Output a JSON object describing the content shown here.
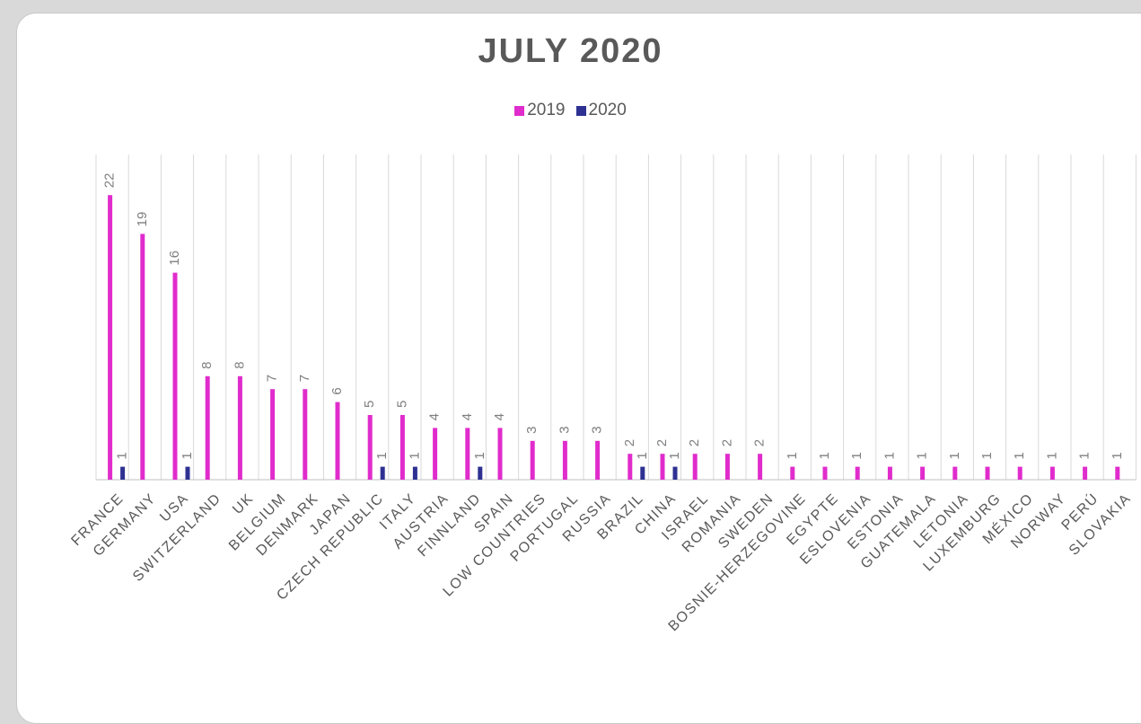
{
  "chart_data": {
    "type": "bar",
    "title": "JULY 2020",
    "xlabel": "",
    "ylabel": "",
    "ylim": [
      0,
      23
    ],
    "grid": "vertical",
    "legend_position": "top",
    "categories": [
      "FRANCE",
      "GERMANY",
      "USA",
      "SWITZERLAND",
      "UK",
      "BELGIUM",
      "DENMARK",
      "JAPAN",
      "CZECH REPUBLIC",
      "ITALY",
      "AUSTRIA",
      "FINNLAND",
      "SPAIN",
      "LOW COUNTRIES",
      "PORTUGAL",
      "RUSSIA",
      "BRAZIL",
      "CHINA",
      "ISRAEL",
      "ROMANIA",
      "SWEDEN",
      "BOSNIE-HERZEGOVINE",
      "EGYPTE",
      "ESLOVENIA",
      "ESTONIA",
      "GUATEMALA",
      "LETONIA",
      "LUXEMBURG",
      "MÉXICO",
      "NORWAY",
      "PERÚ",
      "SLOVAKIA"
    ],
    "series": [
      {
        "name": "2019",
        "color": "#e02ccc",
        "values": [
          22,
          19,
          16,
          8,
          8,
          7,
          7,
          6,
          5,
          5,
          4,
          4,
          4,
          3,
          3,
          3,
          2,
          2,
          2,
          2,
          2,
          1,
          1,
          1,
          1,
          1,
          1,
          1,
          1,
          1,
          1,
          1
        ]
      },
      {
        "name": "2020",
        "color": "#2e3192",
        "values": [
          1,
          null,
          1,
          null,
          null,
          null,
          null,
          null,
          1,
          1,
          null,
          1,
          null,
          null,
          null,
          null,
          1,
          1,
          null,
          null,
          null,
          null,
          null,
          null,
          null,
          null,
          null,
          null,
          null,
          null,
          null,
          null
        ]
      }
    ]
  }
}
